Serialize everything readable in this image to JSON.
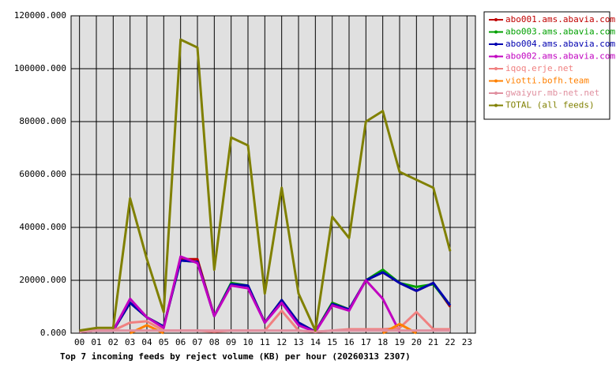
{
  "chart_data": {
    "type": "line",
    "title": "Top 7 incoming feeds by reject volume (KB) per hour (20260313 2307)",
    "categories": [
      "00",
      "01",
      "02",
      "03",
      "04",
      "05",
      "06",
      "07",
      "08",
      "09",
      "10",
      "11",
      "12",
      "13",
      "14",
      "15",
      "16",
      "17",
      "18",
      "19",
      "20",
      "21",
      "22",
      "23"
    ],
    "ylim": [
      0,
      120000
    ],
    "yticks": [
      {
        "value": 0,
        "label": "0.000"
      },
      {
        "value": 20000,
        "label": "20000.000"
      },
      {
        "value": 40000,
        "label": "40000.000"
      },
      {
        "value": 60000,
        "label": "60000.000"
      },
      {
        "value": 80000,
        "label": "80000.000"
      },
      {
        "value": 100000,
        "label": "100000.000"
      },
      {
        "value": 120000,
        "label": "120000.000"
      }
    ],
    "grid": true,
    "legend": "upper right",
    "series": [
      {
        "name": "abo001.ams.abavia.com",
        "color": "#c00000",
        "values": [
          500,
          1000,
          1000,
          11500,
          6000,
          2500,
          28000,
          28000,
          6500,
          18500,
          18000,
          4000,
          12500,
          4000,
          500,
          11500,
          9000,
          20000,
          23000,
          19000,
          16000,
          19000,
          10000,
          null
        ]
      },
      {
        "name": "abo003.ams.abavia.com",
        "color": "#00a000",
        "values": [
          500,
          1000,
          1000,
          11500,
          6000,
          2500,
          27500,
          27000,
          6500,
          19000,
          18000,
          4000,
          12500,
          4000,
          500,
          11500,
          9000,
          20000,
          24000,
          19000,
          17500,
          18500,
          10500,
          null
        ]
      },
      {
        "name": "abo004.ams.abavia.com",
        "color": "#0000b0",
        "values": [
          500,
          1000,
          1000,
          11500,
          6000,
          2500,
          27500,
          27000,
          6500,
          18500,
          18000,
          4000,
          12500,
          4000,
          500,
          11000,
          9000,
          20000,
          23000,
          19000,
          16000,
          19000,
          10500,
          null
        ]
      },
      {
        "name": "abo002.ams.abavia.com",
        "color": "#c000c0",
        "values": [
          500,
          1000,
          1000,
          13000,
          6000,
          2000,
          29000,
          26500,
          6500,
          18000,
          17000,
          4000,
          11500,
          3000,
          500,
          10500,
          8500,
          20000,
          13000,
          500,
          null,
          null,
          null,
          null
        ]
      },
      {
        "name": "iqoq.erje.net",
        "color": "#f08080",
        "values": [
          500,
          1000,
          1000,
          4000,
          4500,
          1000,
          1000,
          1000,
          500,
          1000,
          1000,
          1000,
          8500,
          1000,
          500,
          1000,
          1500,
          1500,
          1500,
          2000,
          8000,
          1500,
          1500,
          null
        ]
      },
      {
        "name": "viotti.bofh.team",
        "color": "#ff8000",
        "values": [
          null,
          null,
          null,
          0,
          3000,
          0,
          null,
          null,
          null,
          null,
          null,
          null,
          null,
          null,
          null,
          null,
          null,
          null,
          0,
          3500,
          0,
          null,
          null,
          null
        ]
      },
      {
        "name": "gwaiyur.mb-net.net",
        "color": "#e090a0",
        "values": [
          500,
          1000,
          1000,
          1000,
          1000,
          1000,
          1000,
          1000,
          1000,
          1000,
          1000,
          1000,
          1000,
          1000,
          500,
          1000,
          1000,
          1000,
          1000,
          1000,
          1000,
          1000,
          1000,
          null
        ]
      },
      {
        "name": "TOTAL (all feeds)",
        "color": "#808000",
        "values": [
          1000,
          2000,
          2000,
          51000,
          28000,
          8000,
          111000,
          108000,
          24000,
          74000,
          71000,
          15000,
          55000,
          15000,
          1000,
          44000,
          36000,
          80000,
          84000,
          61000,
          58000,
          55000,
          31000,
          null
        ]
      }
    ]
  }
}
